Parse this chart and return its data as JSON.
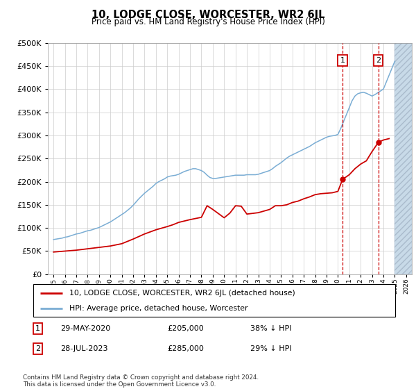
{
  "title": "10, LODGE CLOSE, WORCESTER, WR2 6JL",
  "subtitle": "Price paid vs. HM Land Registry's House Price Index (HPI)",
  "footnote": "Contains HM Land Registry data © Crown copyright and database right 2024.\nThis data is licensed under the Open Government Licence v3.0.",
  "legend_line1": "10, LODGE CLOSE, WORCESTER, WR2 6JL (detached house)",
  "legend_line2": "HPI: Average price, detached house, Worcester",
  "sale1_date": "29-MAY-2020",
  "sale1_price": "£205,000",
  "sale1_hpi": "38% ↓ HPI",
  "sale1_year": 2020.41,
  "sale1_value": 205000,
  "sale2_date": "28-JUL-2023",
  "sale2_price": "£285,000",
  "sale2_hpi": "29% ↓ HPI",
  "sale2_year": 2023.56,
  "sale2_value": 285000,
  "red_color": "#cc0000",
  "blue_color": "#7aadd4",
  "hatch_color": "#c8dae8",
  "xlim": [
    1994.5,
    2026.5
  ],
  "ylim": [
    0,
    500000
  ],
  "future_start": 2025.0,
  "hpi_years": [
    1995,
    1995.25,
    1995.5,
    1995.75,
    1996,
    1996.25,
    1996.5,
    1996.75,
    1997,
    1997.25,
    1997.5,
    1997.75,
    1998,
    1998.25,
    1998.5,
    1998.75,
    1999,
    1999.25,
    1999.5,
    1999.75,
    2000,
    2000.25,
    2000.5,
    2000.75,
    2001,
    2001.25,
    2001.5,
    2001.75,
    2002,
    2002.25,
    2002.5,
    2002.75,
    2003,
    2003.25,
    2003.5,
    2003.75,
    2004,
    2004.25,
    2004.5,
    2004.75,
    2005,
    2005.25,
    2005.5,
    2005.75,
    2006,
    2006.25,
    2006.5,
    2006.75,
    2007,
    2007.25,
    2007.5,
    2007.75,
    2008,
    2008.25,
    2008.5,
    2008.75,
    2009,
    2009.25,
    2009.5,
    2009.75,
    2010,
    2010.25,
    2010.5,
    2010.75,
    2011,
    2011.25,
    2011.5,
    2011.75,
    2012,
    2012.25,
    2012.5,
    2012.75,
    2013,
    2013.25,
    2013.5,
    2013.75,
    2014,
    2014.25,
    2014.5,
    2014.75,
    2015,
    2015.25,
    2015.5,
    2015.75,
    2016,
    2016.25,
    2016.5,
    2016.75,
    2017,
    2017.25,
    2017.5,
    2017.75,
    2018,
    2018.25,
    2018.5,
    2018.75,
    2019,
    2019.25,
    2019.5,
    2019.75,
    2020,
    2020.25,
    2020.5,
    2020.75,
    2021,
    2021.25,
    2021.5,
    2021.75,
    2022,
    2022.25,
    2022.5,
    2022.75,
    2023,
    2023.25,
    2023.5,
    2023.75,
    2024,
    2024.25,
    2024.5,
    2024.75,
    2025
  ],
  "hpi_values": [
    75000,
    76000,
    77000,
    78000,
    80000,
    81000,
    83000,
    85000,
    87000,
    88000,
    90000,
    92000,
    94000,
    95000,
    97000,
    99000,
    101000,
    104000,
    107000,
    110000,
    113000,
    117000,
    121000,
    125000,
    129000,
    133000,
    138000,
    143000,
    149000,
    156000,
    163000,
    169000,
    175000,
    180000,
    185000,
    190000,
    196000,
    200000,
    203000,
    206000,
    210000,
    212000,
    213000,
    214000,
    216000,
    219000,
    222000,
    224000,
    226000,
    228000,
    228000,
    226000,
    224000,
    220000,
    214000,
    209000,
    207000,
    207000,
    208000,
    209000,
    210000,
    211000,
    212000,
    213000,
    214000,
    214000,
    214000,
    214000,
    215000,
    215000,
    215000,
    215000,
    216000,
    218000,
    220000,
    222000,
    224000,
    228000,
    233000,
    237000,
    241000,
    246000,
    251000,
    255000,
    258000,
    261000,
    264000,
    267000,
    270000,
    273000,
    276000,
    280000,
    284000,
    287000,
    290000,
    293000,
    296000,
    298000,
    299000,
    300000,
    302000,
    315000,
    330000,
    345000,
    360000,
    375000,
    385000,
    390000,
    392000,
    393000,
    391000,
    388000,
    385000,
    388000,
    392000,
    396000,
    400000,
    415000,
    430000,
    445000,
    460000
  ],
  "red_years": [
    1995,
    1996,
    1997,
    1998,
    1999,
    2000,
    2001,
    2002,
    2003,
    2004,
    2005,
    2005.5,
    2006,
    2007,
    2008,
    2008.5,
    2009,
    2010,
    2010.5,
    2011,
    2011.5,
    2012,
    2013,
    2014,
    2014.5,
    2015,
    2015.5,
    2016,
    2016.5,
    2017,
    2017.5,
    2018,
    2018.5,
    2019,
    2019.5,
    2020,
    2020.41,
    2021,
    2021.5,
    2022,
    2022.5,
    2023,
    2023.56,
    2024,
    2024.5
  ],
  "red_values": [
    48000,
    50000,
    52000,
    55000,
    58000,
    61000,
    66000,
    76000,
    87000,
    96000,
    103000,
    107000,
    112000,
    118000,
    123000,
    148000,
    140000,
    122000,
    132000,
    148000,
    147000,
    130000,
    133000,
    140000,
    148000,
    148000,
    150000,
    155000,
    158000,
    163000,
    167000,
    172000,
    174000,
    175000,
    176000,
    179000,
    205000,
    215000,
    228000,
    238000,
    245000,
    265000,
    285000,
    290000,
    293000
  ]
}
